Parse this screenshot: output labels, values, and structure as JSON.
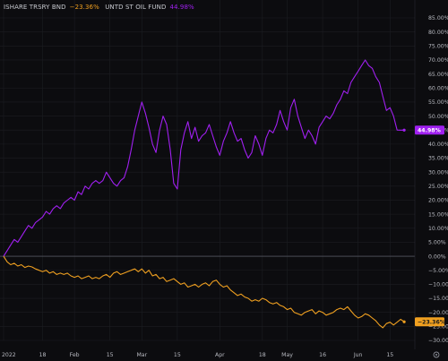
{
  "legend": {
    "series1_label": "ISHARE TRSRY BND",
    "series1_value": "−23.36%",
    "series2_label": "UNTD ST OIL FUND",
    "series2_value": "44.98%"
  },
  "badges": {
    "oil": "44.98%",
    "bond": "−23.36%"
  },
  "colors": {
    "background": "#0c0c0f",
    "oil": "#a020f0",
    "bond": "#f0a020",
    "grid": "#1c1d22",
    "zero_line": "#6a6d78",
    "text": "#b7b9c0"
  },
  "settings_icon": "gear-icon",
  "chart_data": {
    "type": "line",
    "y_unit": "%",
    "ylim": [
      -30,
      85
    ],
    "y_ticks": [
      "85.00%",
      "80.00%",
      "75.00%",
      "70.00%",
      "65.00%",
      "60.00%",
      "55.00%",
      "50.00%",
      "45.00%",
      "40.00%",
      "35.00%",
      "30.00%",
      "25.00%",
      "20.00%",
      "15.00%",
      "10.00%",
      "5.00%",
      "0.00%",
      "−5.00%",
      "−10.00%",
      "−15.00%",
      "−20.00%",
      "−25.00%",
      "−30.00%"
    ],
    "x_ticks": [
      "2022",
      "18",
      "Feb",
      "15",
      "Mar",
      "15",
      "Apr",
      "18",
      "May",
      "16",
      "Jun",
      "15"
    ],
    "x_range": [
      0,
      115
    ],
    "x_tick_positions": [
      0,
      11,
      20,
      30,
      39,
      49,
      61,
      73,
      80,
      90,
      100,
      109
    ],
    "series": [
      {
        "name": "UNTD ST OIL FUND",
        "color": "#a020f0",
        "x": [
          0,
          1,
          2,
          3,
          4,
          5,
          6,
          7,
          8,
          9,
          10,
          11,
          12,
          13,
          14,
          15,
          16,
          17,
          18,
          19,
          20,
          21,
          22,
          23,
          24,
          25,
          26,
          27,
          28,
          29,
          30,
          31,
          32,
          33,
          34,
          35,
          36,
          37,
          38,
          39,
          40,
          41,
          42,
          43,
          44,
          45,
          46,
          47,
          48,
          49,
          50,
          51,
          52,
          53,
          54,
          55,
          56,
          57,
          58,
          59,
          60,
          61,
          62,
          63,
          64,
          65,
          66,
          67,
          68,
          69,
          70,
          71,
          72,
          73,
          74,
          75,
          76,
          77,
          78,
          79,
          80,
          81,
          82,
          83,
          84,
          85,
          86,
          87,
          88,
          89,
          90,
          91,
          92,
          93,
          94,
          95,
          96,
          97,
          98,
          99,
          100,
          101,
          102,
          103,
          104,
          105,
          106,
          107,
          108,
          109,
          110,
          111,
          112,
          113
        ],
        "y": [
          0,
          2,
          4,
          6,
          5,
          7,
          9,
          11,
          10,
          12,
          13,
          14,
          16,
          15,
          17,
          18,
          17,
          19,
          20,
          21,
          20,
          23,
          22,
          25,
          24,
          26,
          27,
          26,
          27,
          30,
          28,
          26,
          25,
          27,
          28,
          32,
          38,
          45,
          50,
          55,
          51,
          46,
          40,
          37,
          45,
          50,
          47,
          38,
          26,
          24,
          38,
          44,
          48,
          42,
          46,
          41,
          43,
          44,
          47,
          43,
          39,
          36,
          41,
          44,
          48,
          44,
          41,
          42,
          38,
          35,
          37,
          43,
          40,
          36,
          42,
          45,
          44,
          47,
          52,
          48,
          45,
          53,
          56,
          50,
          46,
          42,
          45,
          43,
          40,
          46,
          48,
          50,
          49,
          51,
          54,
          56,
          59,
          58,
          62,
          64,
          66,
          68,
          70,
          68,
          67,
          64,
          62,
          57,
          52,
          53,
          50,
          45,
          44.98,
          44.98
        ],
        "last_value": 44.98
      },
      {
        "name": "ISHARE TRSRY BND",
        "color": "#f0a020",
        "x": [
          0,
          1,
          2,
          3,
          4,
          5,
          6,
          7,
          8,
          9,
          10,
          11,
          12,
          13,
          14,
          15,
          16,
          17,
          18,
          19,
          20,
          21,
          22,
          23,
          24,
          25,
          26,
          27,
          28,
          29,
          30,
          31,
          32,
          33,
          34,
          35,
          36,
          37,
          38,
          39,
          40,
          41,
          42,
          43,
          44,
          45,
          46,
          47,
          48,
          49,
          50,
          51,
          52,
          53,
          54,
          55,
          56,
          57,
          58,
          59,
          60,
          61,
          62,
          63,
          64,
          65,
          66,
          67,
          68,
          69,
          70,
          71,
          72,
          73,
          74,
          75,
          76,
          77,
          78,
          79,
          80,
          81,
          82,
          83,
          84,
          85,
          86,
          87,
          88,
          89,
          90,
          91,
          92,
          93,
          94,
          95,
          96,
          97,
          98,
          99,
          100,
          101,
          102,
          103,
          104,
          105,
          106,
          107,
          108,
          109,
          110,
          111,
          112,
          113
        ],
        "y": [
          0,
          -2,
          -3,
          -2.5,
          -3.5,
          -3,
          -4,
          -3.5,
          -3.8,
          -4.5,
          -5,
          -5.5,
          -5,
          -6,
          -5.5,
          -6.5,
          -6,
          -6.5,
          -6,
          -7,
          -7.5,
          -7,
          -8,
          -7.5,
          -7,
          -8,
          -7.5,
          -8,
          -7,
          -6.5,
          -7.5,
          -6,
          -5.5,
          -6.5,
          -6,
          -5.5,
          -5,
          -4.5,
          -5.5,
          -4.5,
          -6,
          -5,
          -7,
          -6.5,
          -8,
          -7.5,
          -9,
          -8.5,
          -8,
          -9,
          -10,
          -9.5,
          -11,
          -10.5,
          -10,
          -11,
          -10,
          -9.5,
          -10.5,
          -9,
          -8.5,
          -10,
          -11,
          -10.5,
          -12,
          -13,
          -14,
          -13.5,
          -14.5,
          -15,
          -16,
          -15.5,
          -16,
          -15,
          -15.5,
          -16.5,
          -17,
          -16.5,
          -17.5,
          -18,
          -19,
          -18.5,
          -20,
          -20.5,
          -21,
          -20,
          -19.5,
          -19,
          -20.5,
          -19.5,
          -20,
          -21,
          -20.5,
          -20,
          -19,
          -18.5,
          -19,
          -18,
          -19.5,
          -21,
          -22,
          -21.5,
          -20.5,
          -21,
          -22,
          -23,
          -24.5,
          -25.5,
          -24,
          -23.5,
          -24.5,
          -23.5,
          -22.5,
          -23.36
        ],
        "last_value": -23.36
      }
    ]
  }
}
